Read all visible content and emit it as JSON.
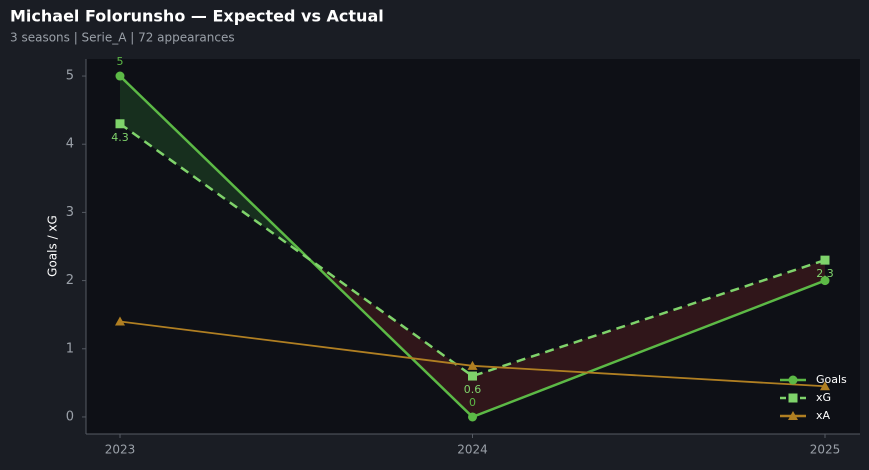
{
  "chart_data": {
    "type": "line",
    "title": "Michael Folorunsho — Expected vs Actual",
    "subtitle": "3 seasons | Serie_A | 72 appearances",
    "y_label": "Goals / xG",
    "categories": [
      "2023",
      "2024",
      "2025"
    ],
    "series": [
      {
        "name": "Goals",
        "color": "#5cb946",
        "marker": "circle",
        "dash": false,
        "values": [
          5,
          0,
          2
        ],
        "value_labels": [
          "5",
          "0",
          null
        ]
      },
      {
        "name": "xG",
        "color": "#7fd36b",
        "marker": "square",
        "dash": true,
        "values": [
          4.3,
          0.6,
          2.3
        ],
        "value_labels": [
          "4.3",
          "0.6",
          "2.3"
        ]
      },
      {
        "name": "xA",
        "color": "#b07f22",
        "marker": "triangle",
        "dash": false,
        "values": [
          1.4,
          0.75,
          0.45
        ]
      }
    ],
    "ylim": [
      -0.25,
      5.25
    ],
    "yticks": [
      0,
      1,
      2,
      3,
      4,
      5
    ],
    "legend": "lower right"
  }
}
